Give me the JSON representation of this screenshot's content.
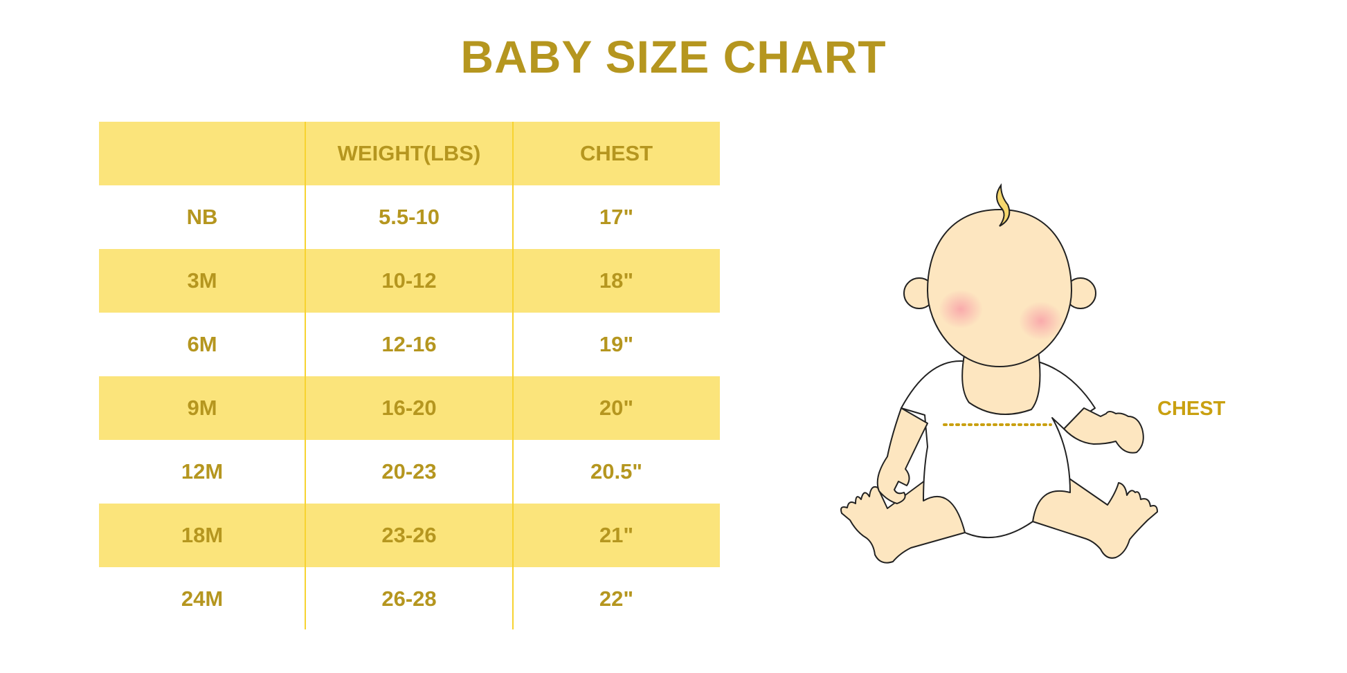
{
  "title": "BABY SIZE CHART",
  "table": {
    "headers": [
      "",
      "WEIGHT(LBS)",
      "CHEST"
    ],
    "rows": [
      [
        "NB",
        "5.5-10",
        "17\""
      ],
      [
        "3M",
        "10-12",
        "18\""
      ],
      [
        "6M",
        "12-16",
        "19\""
      ],
      [
        "9M",
        "16-20",
        "20\""
      ],
      [
        "12M",
        "20-23",
        "20.5\""
      ],
      [
        "18M",
        "23-26",
        "21\""
      ],
      [
        "24M",
        "26-28",
        "22\""
      ]
    ]
  },
  "illustration": {
    "measure_label": "CHEST",
    "colors": {
      "text": "#b5961f",
      "band": "#fbe47b",
      "skin": "#fde6c0",
      "hair": "#f5d76e"
    }
  }
}
